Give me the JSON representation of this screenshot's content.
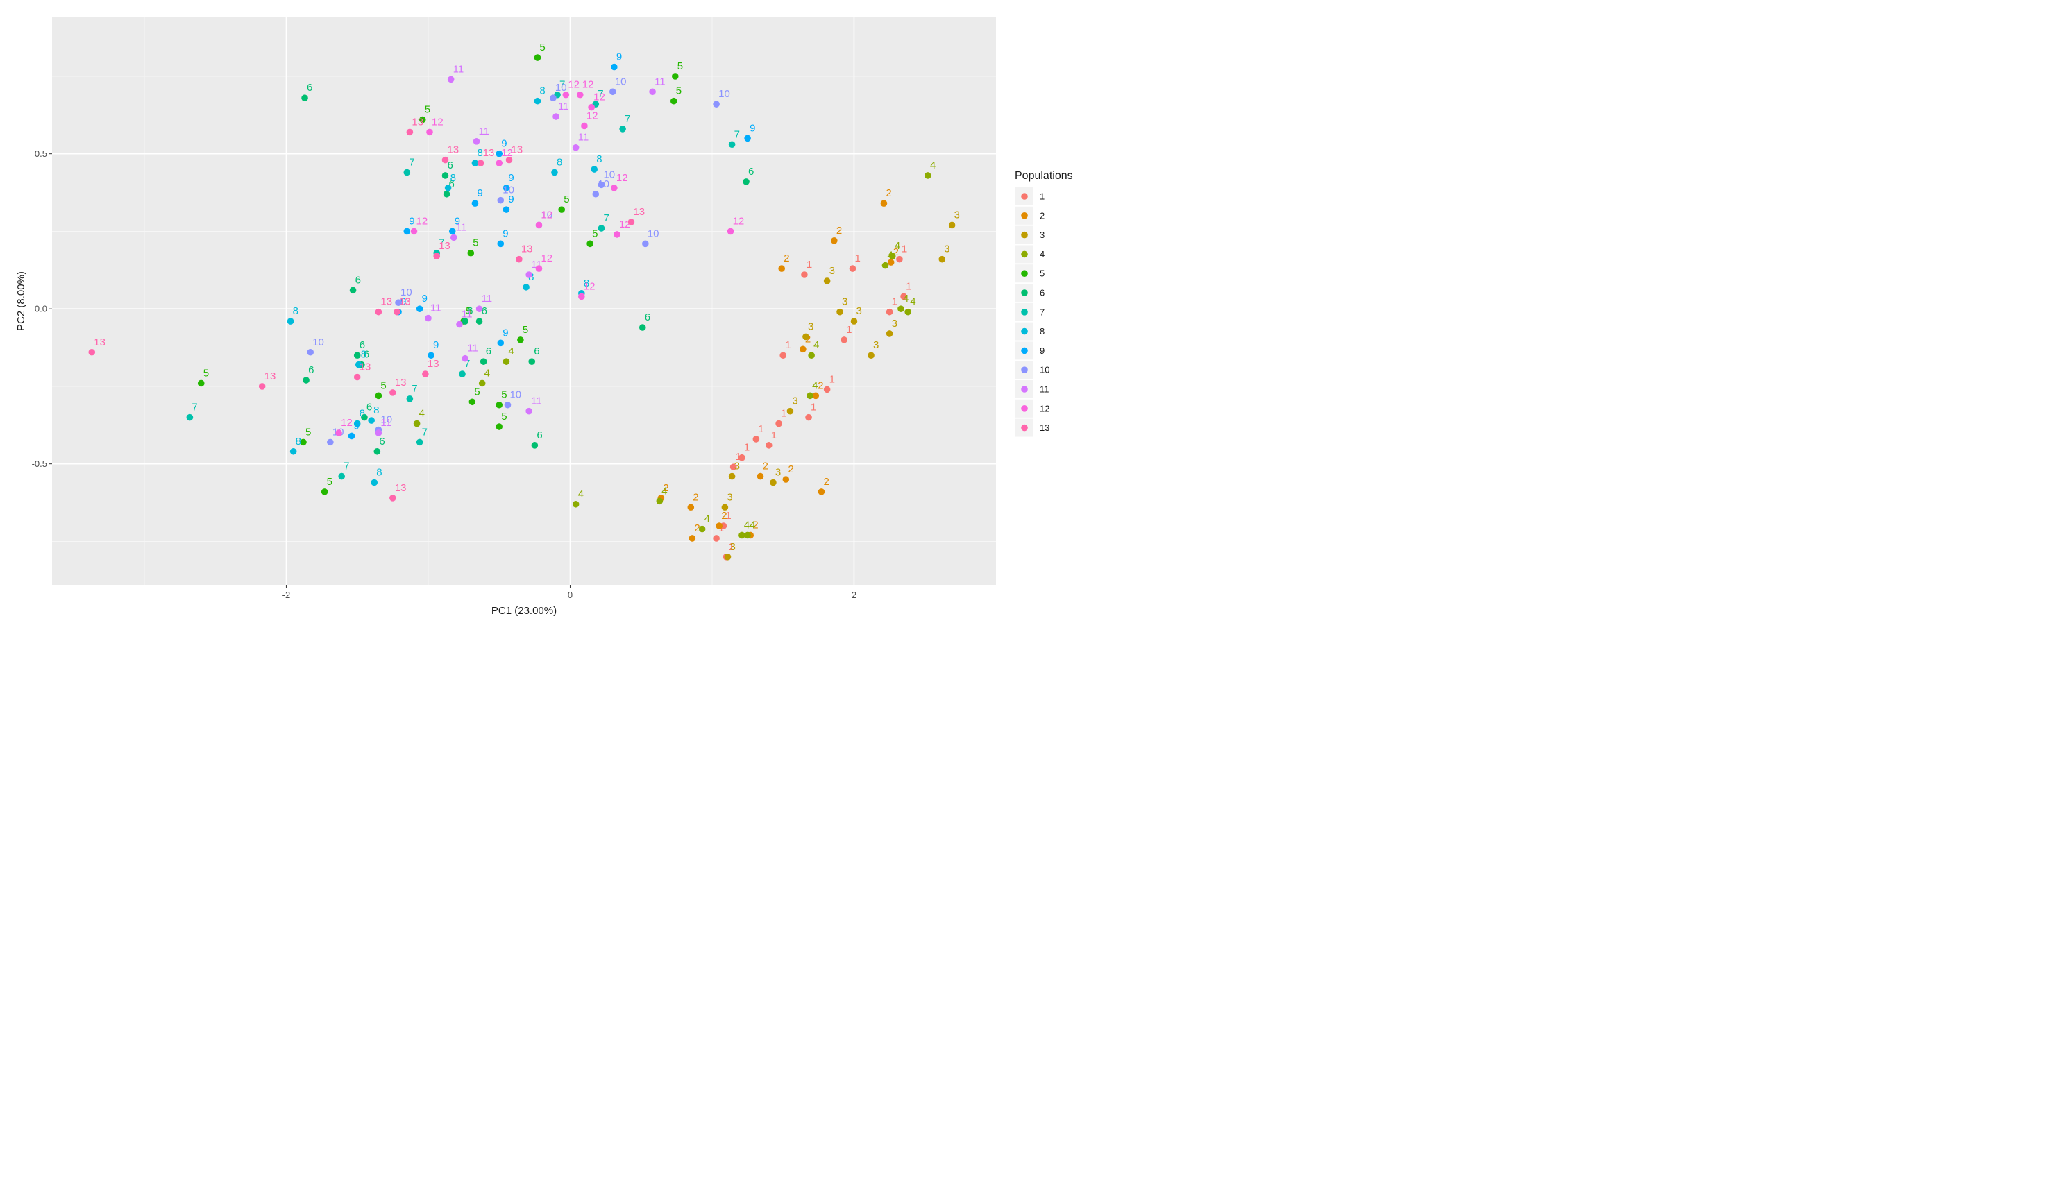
{
  "chart_data": {
    "type": "scatter",
    "title": "",
    "xlabel": "PC1 (23.00%)",
    "ylabel": "PC2 (8.00%)",
    "xlim": [
      -3.65,
      3.0
    ],
    "ylim": [
      -0.89,
      0.94
    ],
    "x_ticks": [
      -2,
      0,
      2
    ],
    "x_tick_labels": [
      "-2",
      "0",
      "2"
    ],
    "y_ticks": [
      -0.5,
      0.0,
      0.5
    ],
    "y_tick_labels": [
      "-0.5",
      "0.0",
      "0.5"
    ],
    "grid": true,
    "legend_position": "right",
    "legend": {
      "title": "Populations",
      "entries": [
        "1",
        "2",
        "3",
        "4",
        "5",
        "6",
        "7",
        "8",
        "9",
        "10",
        "11",
        "12",
        "13"
      ],
      "colors": [
        "#F8766D",
        "#E18A00",
        "#BE9C00",
        "#8CAB00",
        "#24B700",
        "#00BE70",
        "#00C1AB",
        "#00BBDA",
        "#00ACFC",
        "#8B93FF",
        "#D575FE",
        "#F962DD",
        "#FF65AC"
      ]
    },
    "series": [
      {
        "name": "1",
        "points": [
          [
            1.5,
            -0.15
          ],
          [
            1.65,
            0.11
          ],
          [
            1.99,
            0.13
          ],
          [
            1.68,
            -0.35
          ],
          [
            1.93,
            -0.1
          ],
          [
            2.35,
            0.04
          ],
          [
            2.25,
            -0.01
          ],
          [
            1.81,
            -0.26
          ],
          [
            1.31,
            -0.42
          ],
          [
            1.21,
            -0.48
          ],
          [
            1.15,
            -0.51
          ],
          [
            1.1,
            -0.8
          ],
          [
            1.03,
            -0.74
          ],
          [
            2.32,
            0.16
          ],
          [
            1.47,
            -0.37
          ],
          [
            1.4,
            -0.44
          ],
          [
            1.08,
            -0.7
          ]
        ]
      },
      {
        "name": "2",
        "points": [
          [
            1.49,
            0.13
          ],
          [
            1.86,
            0.22
          ],
          [
            2.21,
            0.34
          ],
          [
            2.26,
            0.15
          ],
          [
            1.64,
            -0.13
          ],
          [
            1.73,
            -0.28
          ],
          [
            1.34,
            -0.54
          ],
          [
            1.52,
            -0.55
          ],
          [
            1.77,
            -0.59
          ],
          [
            0.64,
            -0.61
          ],
          [
            0.85,
            -0.64
          ],
          [
            0.86,
            -0.74
          ],
          [
            1.05,
            -0.7
          ],
          [
            1.27,
            -0.73
          ]
        ]
      },
      {
        "name": "3",
        "points": [
          [
            1.81,
            0.09
          ],
          [
            1.9,
            -0.01
          ],
          [
            2.0,
            -0.04
          ],
          [
            2.25,
            -0.08
          ],
          [
            2.62,
            0.16
          ],
          [
            2.69,
            0.27
          ],
          [
            1.66,
            -0.09
          ],
          [
            1.55,
            -0.33
          ],
          [
            1.14,
            -0.54
          ],
          [
            1.43,
            -0.56
          ],
          [
            1.09,
            -0.64
          ],
          [
            1.11,
            -0.8
          ],
          [
            2.12,
            -0.15
          ]
        ]
      },
      {
        "name": "4",
        "points": [
          [
            2.22,
            0.14
          ],
          [
            2.52,
            0.43
          ],
          [
            2.27,
            0.17
          ],
          [
            2.33,
            0.0
          ],
          [
            2.38,
            -0.01
          ],
          [
            1.7,
            -0.15
          ],
          [
            1.69,
            -0.28
          ],
          [
            0.63,
            -0.62
          ],
          [
            0.93,
            -0.71
          ],
          [
            1.21,
            -0.73
          ],
          [
            1.25,
            -0.73
          ],
          [
            0.04,
            -0.63
          ],
          [
            -0.45,
            -0.17
          ],
          [
            -0.62,
            -0.24
          ],
          [
            -1.08,
            -0.37
          ]
        ]
      },
      {
        "name": "5",
        "points": [
          [
            -0.23,
            0.81
          ],
          [
            0.74,
            0.75
          ],
          [
            0.73,
            0.67
          ],
          [
            -1.04,
            0.61
          ],
          [
            -0.06,
            0.32
          ],
          [
            0.14,
            0.21
          ],
          [
            -0.7,
            0.18
          ],
          [
            -0.35,
            -0.1
          ],
          [
            -0.75,
            -0.04
          ],
          [
            -0.69,
            -0.3
          ],
          [
            -1.35,
            -0.28
          ],
          [
            -0.5,
            -0.31
          ],
          [
            -0.5,
            -0.38
          ],
          [
            -2.6,
            -0.24
          ],
          [
            -1.88,
            -0.43
          ],
          [
            -1.73,
            -0.59
          ]
        ]
      },
      {
        "name": "6",
        "points": [
          [
            -1.87,
            0.68
          ],
          [
            -0.88,
            0.43
          ],
          [
            -0.87,
            0.37
          ],
          [
            1.24,
            0.41
          ],
          [
            -1.53,
            0.06
          ],
          [
            -0.64,
            -0.04
          ],
          [
            -0.74,
            -0.04
          ],
          [
            -0.61,
            -0.17
          ],
          [
            -0.27,
            -0.17
          ],
          [
            -1.47,
            -0.18
          ],
          [
            -1.5,
            -0.15
          ],
          [
            0.51,
            -0.06
          ],
          [
            -1.86,
            -0.23
          ],
          [
            -1.45,
            -0.35
          ],
          [
            -1.36,
            -0.46
          ],
          [
            -0.25,
            -0.44
          ]
        ]
      },
      {
        "name": "7",
        "points": [
          [
            -1.15,
            0.44
          ],
          [
            -0.09,
            0.69
          ],
          [
            0.18,
            0.66
          ],
          [
            0.37,
            0.58
          ],
          [
            1.14,
            0.53
          ],
          [
            0.22,
            0.26
          ],
          [
            -0.94,
            0.18
          ],
          [
            -0.76,
            -0.21
          ],
          [
            -1.13,
            -0.29
          ],
          [
            -1.06,
            -0.43
          ],
          [
            -1.61,
            -0.54
          ],
          [
            -2.68,
            -0.35
          ]
        ]
      },
      {
        "name": "8",
        "points": [
          [
            -0.23,
            0.67
          ],
          [
            -0.67,
            0.47
          ],
          [
            -0.11,
            0.44
          ],
          [
            0.17,
            0.45
          ],
          [
            -0.31,
            0.07
          ],
          [
            0.08,
            0.05
          ],
          [
            -1.97,
            -0.04
          ],
          [
            -1.49,
            -0.18
          ],
          [
            -1.5,
            -0.37
          ],
          [
            -1.4,
            -0.36
          ],
          [
            -1.38,
            -0.56
          ],
          [
            -1.95,
            -0.46
          ],
          [
            -0.86,
            0.39
          ]
        ]
      },
      {
        "name": "9",
        "points": [
          [
            0.31,
            0.78
          ],
          [
            1.25,
            0.55
          ],
          [
            -0.5,
            0.5
          ],
          [
            -0.45,
            0.39
          ],
          [
            -0.67,
            0.34
          ],
          [
            -0.45,
            0.32
          ],
          [
            -0.83,
            0.25
          ],
          [
            -1.15,
            0.25
          ],
          [
            -0.49,
            0.21
          ],
          [
            -1.21,
            -0.01
          ],
          [
            -1.06,
            0.0
          ],
          [
            -0.49,
            -0.11
          ],
          [
            -0.98,
            -0.15
          ],
          [
            -1.54,
            -0.41
          ]
        ]
      },
      {
        "name": "10",
        "points": [
          [
            1.03,
            0.66
          ],
          [
            0.3,
            0.7
          ],
          [
            -0.12,
            0.68
          ],
          [
            0.22,
            0.4
          ],
          [
            0.18,
            0.37
          ],
          [
            -0.49,
            0.35
          ],
          [
            -0.22,
            0.27
          ],
          [
            0.53,
            0.21
          ],
          [
            -1.21,
            0.02
          ],
          [
            -1.83,
            -0.14
          ],
          [
            -1.69,
            -0.43
          ],
          [
            -1.35,
            -0.39
          ],
          [
            -0.44,
            -0.31
          ]
        ]
      },
      {
        "name": "11",
        "points": [
          [
            -0.84,
            0.74
          ],
          [
            0.58,
            0.7
          ],
          [
            -0.1,
            0.62
          ],
          [
            0.04,
            0.52
          ],
          [
            -0.66,
            0.54
          ],
          [
            -0.29,
            0.11
          ],
          [
            -1.0,
            -0.03
          ],
          [
            -0.78,
            -0.05
          ],
          [
            -0.74,
            -0.16
          ],
          [
            -0.82,
            0.23
          ],
          [
            -0.29,
            -0.33
          ],
          [
            -0.64,
            0.0
          ],
          [
            -1.35,
            -0.4
          ]
        ]
      },
      {
        "name": "12",
        "points": [
          [
            -0.03,
            0.69
          ],
          [
            0.07,
            0.69
          ],
          [
            0.15,
            0.65
          ],
          [
            0.1,
            0.59
          ],
          [
            -0.99,
            0.57
          ],
          [
            -0.5,
            0.47
          ],
          [
            0.31,
            0.39
          ],
          [
            0.33,
            0.24
          ],
          [
            1.13,
            0.25
          ],
          [
            -0.22,
            0.13
          ],
          [
            -0.22,
            0.27
          ],
          [
            -1.1,
            0.25
          ],
          [
            0.08,
            0.04
          ],
          [
            -1.63,
            -0.4
          ]
        ]
      },
      {
        "name": "13",
        "points": [
          [
            -1.13,
            0.57
          ],
          [
            -0.88,
            0.48
          ],
          [
            -0.43,
            0.48
          ],
          [
            0.43,
            0.28
          ],
          [
            -0.94,
            0.17
          ],
          [
            -0.36,
            0.16
          ],
          [
            -1.35,
            -0.01
          ],
          [
            -1.22,
            -0.01
          ],
          [
            -1.5,
            -0.22
          ],
          [
            -1.02,
            -0.21
          ],
          [
            -2.17,
            -0.25
          ],
          [
            -1.25,
            -0.61
          ],
          [
            -3.37,
            -0.14
          ],
          [
            -0.63,
            0.47
          ],
          [
            -1.25,
            -0.27
          ]
        ]
      }
    ]
  }
}
